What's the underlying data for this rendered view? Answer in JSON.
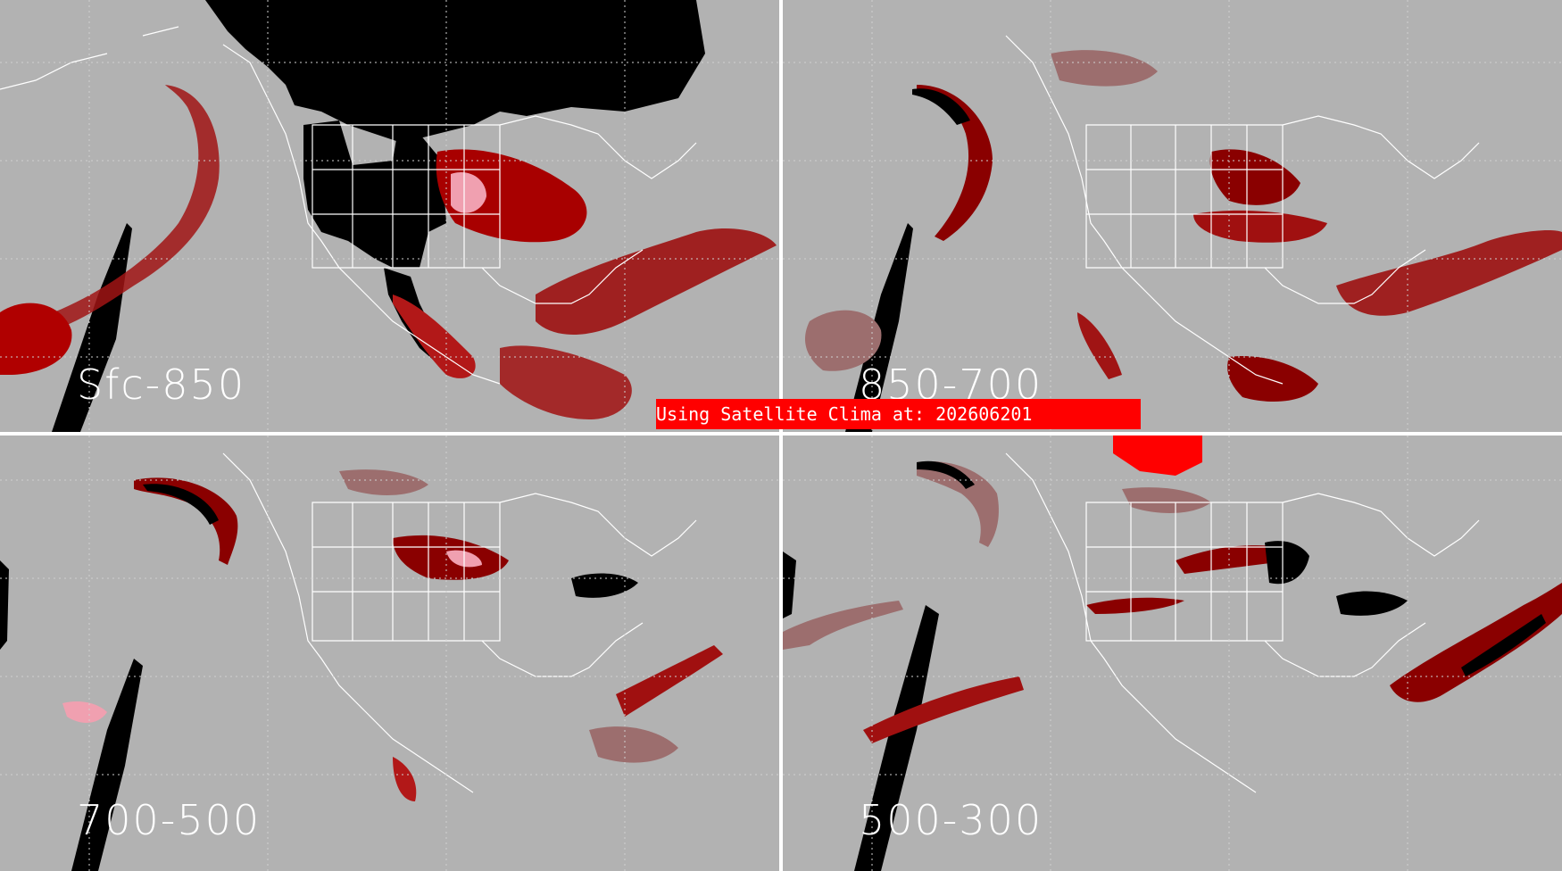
{
  "banner": {
    "text": "Using Satellite Clima at: 202606201"
  },
  "panels": [
    {
      "label": "Sfc-850"
    },
    {
      "label": "850-700"
    },
    {
      "label": "700-500"
    },
    {
      "label": "500-300"
    }
  ],
  "colors": {
    "background": "#b2b2b2",
    "outline": "#ffffff",
    "dark_red": "#b00000",
    "mauve": "#9c6e6e",
    "pink": "#f0a0b0",
    "bright_red": "#ff0000",
    "no_data": "#000000"
  }
}
